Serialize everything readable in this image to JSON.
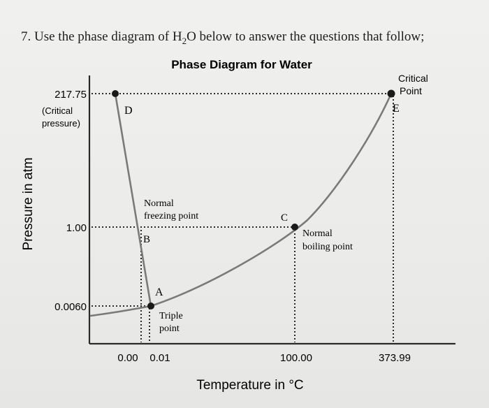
{
  "question": {
    "prefix": "7. Use the phase diagram of H",
    "subscript": "2",
    "suffix": "O below to answer the questions that follow;"
  },
  "diagram": {
    "title": "Phase Diagram for Water",
    "xlabel": "Temperature in °C",
    "ylabel": "Pressure in atm",
    "y_ticks": [
      "217.75",
      "1.00",
      "0.0060"
    ],
    "y_tick_note": [
      "(Critical",
      "pressure)"
    ],
    "x_ticks": [
      "0.00",
      "0.01",
      "100.00",
      "373.99"
    ],
    "points": {
      "A": "A",
      "B": "B",
      "C": "C",
      "D": "D",
      "E": "E"
    },
    "annotations": {
      "critical_point": [
        "Critical",
        "Point"
      ],
      "normal_freezing_point": [
        "Normal",
        "freezing point"
      ],
      "normal_boiling_point": [
        "Normal",
        "boiling point"
      ],
      "triple_point": [
        "Triple",
        "point"
      ]
    },
    "colors": {
      "curve": "#7a7a7a",
      "axis": "#2a2a2a",
      "dots": "#1a1a1a"
    }
  }
}
